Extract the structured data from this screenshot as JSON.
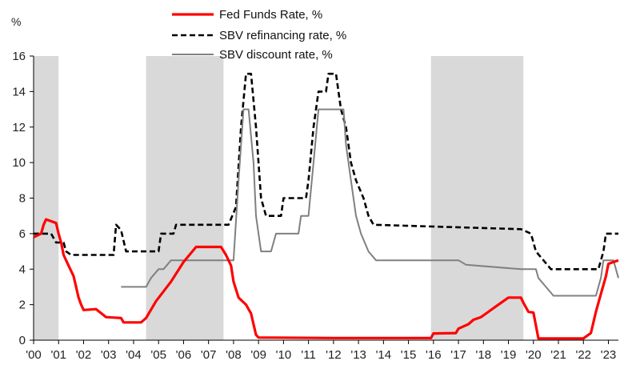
{
  "chart_data": {
    "type": "line",
    "ylabel": "%",
    "ylim": [
      0,
      16
    ],
    "y_ticks": [
      0,
      2,
      4,
      6,
      8,
      10,
      12,
      14,
      16
    ],
    "x_range": [
      2000.0,
      2023.4
    ],
    "x_ticks": [
      {
        "label": "'00",
        "x": 2000.0
      },
      {
        "label": "'01",
        "x": 2001.0
      },
      {
        "label": "'02",
        "x": 2002.0
      },
      {
        "label": "'03",
        "x": 2003.0
      },
      {
        "label": "'04",
        "x": 2004.0
      },
      {
        "label": "'05",
        "x": 2005.0
      },
      {
        "label": "'06",
        "x": 2006.0
      },
      {
        "label": "'07",
        "x": 2007.0
      },
      {
        "label": "'08",
        "x": 2008.0
      },
      {
        "label": "'09",
        "x": 2009.0
      },
      {
        "label": "'10",
        "x": 2010.0
      },
      {
        "label": "'11",
        "x": 2011.0
      },
      {
        "label": "'12",
        "x": 2012.0
      },
      {
        "label": "'13",
        "x": 2013.0
      },
      {
        "label": "'14",
        "x": 2014.0
      },
      {
        "label": "'15",
        "x": 2015.0
      },
      {
        "label": "'16",
        "x": 2016.0
      },
      {
        "label": "'17",
        "x": 2017.0
      },
      {
        "label": "'18",
        "x": 2018.0
      },
      {
        "label": "'19",
        "x": 2019.0
      },
      {
        "label": "'20",
        "x": 2020.0
      },
      {
        "label": "'21",
        "x": 2021.0
      },
      {
        "label": "'22",
        "x": 2022.0
      },
      {
        "label": "'23",
        "x": 2023.0
      }
    ],
    "shaded_periods": [
      [
        2000.0,
        2001.0
      ],
      [
        2004.5,
        2007.6
      ],
      [
        2015.9,
        2019.6
      ]
    ],
    "shade_color": "#d9d9d9",
    "legend_position": "top-center",
    "grid": false,
    "series": [
      {
        "name": "Fed Funds Rate, %",
        "color": "#ff0000",
        "style": "solid",
        "points": [
          [
            2000.0,
            5.8
          ],
          [
            2000.3,
            6.0
          ],
          [
            2000.4,
            6.5
          ],
          [
            2000.5,
            6.8
          ],
          [
            2000.9,
            6.6
          ],
          [
            2001.0,
            6.0
          ],
          [
            2001.1,
            5.5
          ],
          [
            2001.2,
            4.8
          ],
          [
            2001.4,
            4.2
          ],
          [
            2001.6,
            3.6
          ],
          [
            2001.7,
            3.0
          ],
          [
            2001.8,
            2.4
          ],
          [
            2001.9,
            2.0
          ],
          [
            2002.0,
            1.7
          ],
          [
            2002.5,
            1.75
          ],
          [
            2002.9,
            1.3
          ],
          [
            2003.5,
            1.25
          ],
          [
            2003.6,
            1.0
          ],
          [
            2004.0,
            1.0
          ],
          [
            2004.3,
            1.0
          ],
          [
            2004.5,
            1.25
          ],
          [
            2004.9,
            2.2
          ],
          [
            2005.5,
            3.3
          ],
          [
            2006.0,
            4.4
          ],
          [
            2006.5,
            5.25
          ],
          [
            2007.5,
            5.25
          ],
          [
            2007.7,
            4.8
          ],
          [
            2007.9,
            4.2
          ],
          [
            2008.0,
            3.3
          ],
          [
            2008.2,
            2.4
          ],
          [
            2008.5,
            2.0
          ],
          [
            2008.7,
            1.5
          ],
          [
            2008.9,
            0.3
          ],
          [
            2009.0,
            0.15
          ],
          [
            2012.0,
            0.12
          ],
          [
            2015.9,
            0.12
          ],
          [
            2016.0,
            0.38
          ],
          [
            2016.9,
            0.4
          ],
          [
            2017.0,
            0.65
          ],
          [
            2017.4,
            0.9
          ],
          [
            2017.6,
            1.15
          ],
          [
            2017.9,
            1.3
          ],
          [
            2018.2,
            1.6
          ],
          [
            2018.5,
            1.9
          ],
          [
            2018.8,
            2.2
          ],
          [
            2019.0,
            2.4
          ],
          [
            2019.5,
            2.4
          ],
          [
            2019.6,
            2.1
          ],
          [
            2019.8,
            1.6
          ],
          [
            2020.0,
            1.55
          ],
          [
            2020.2,
            0.1
          ],
          [
            2022.0,
            0.1
          ],
          [
            2022.3,
            0.4
          ],
          [
            2022.5,
            1.6
          ],
          [
            2022.7,
            2.6
          ],
          [
            2022.9,
            3.6
          ],
          [
            2023.0,
            4.3
          ],
          [
            2023.4,
            4.5
          ]
        ]
      },
      {
        "name": "SBV refinancing rate, %",
        "color": "#000000",
        "style": "dashed",
        "points": [
          [
            2000.0,
            6.0
          ],
          [
            2000.7,
            6.0
          ],
          [
            2000.9,
            5.5
          ],
          [
            2001.2,
            5.5
          ],
          [
            2001.3,
            5.0
          ],
          [
            2001.5,
            4.8
          ],
          [
            2003.2,
            4.8
          ],
          [
            2003.3,
            6.5
          ],
          [
            2003.5,
            6.2
          ],
          [
            2003.7,
            5.0
          ],
          [
            2005.0,
            5.0
          ],
          [
            2005.1,
            6.0
          ],
          [
            2005.6,
            6.0
          ],
          [
            2005.7,
            6.5
          ],
          [
            2007.8,
            6.5
          ],
          [
            2008.1,
            7.5
          ],
          [
            2008.3,
            12.0
          ],
          [
            2008.5,
            15.0
          ],
          [
            2008.7,
            15.0
          ],
          [
            2008.9,
            12.0
          ],
          [
            2009.1,
            8.0
          ],
          [
            2009.3,
            7.0
          ],
          [
            2009.9,
            7.0
          ],
          [
            2010.0,
            8.0
          ],
          [
            2010.9,
            8.0
          ],
          [
            2011.0,
            9.0
          ],
          [
            2011.2,
            12.0
          ],
          [
            2011.4,
            14.0
          ],
          [
            2011.7,
            14.0
          ],
          [
            2011.8,
            15.0
          ],
          [
            2012.1,
            15.0
          ],
          [
            2012.3,
            13.0
          ],
          [
            2012.5,
            12.0
          ],
          [
            2012.7,
            10.0
          ],
          [
            2012.9,
            9.0
          ],
          [
            2013.2,
            8.0
          ],
          [
            2013.4,
            7.0
          ],
          [
            2013.6,
            6.5
          ],
          [
            2019.5,
            6.25
          ],
          [
            2019.9,
            6.0
          ],
          [
            2020.1,
            5.0
          ],
          [
            2020.4,
            4.5
          ],
          [
            2020.7,
            4.0
          ],
          [
            2022.6,
            4.0
          ],
          [
            2022.8,
            5.0
          ],
          [
            2022.9,
            6.0
          ],
          [
            2023.4,
            6.0
          ]
        ]
      },
      {
        "name": "SBV discount rate, %",
        "color": "#808080",
        "style": "solid",
        "points": [
          [
            2003.5,
            3.0
          ],
          [
            2004.5,
            3.0
          ],
          [
            2004.7,
            3.5
          ],
          [
            2005.0,
            4.0
          ],
          [
            2005.2,
            4.0
          ],
          [
            2005.5,
            4.5
          ],
          [
            2008.0,
            4.5
          ],
          [
            2008.2,
            9.0
          ],
          [
            2008.4,
            13.0
          ],
          [
            2008.6,
            13.0
          ],
          [
            2008.8,
            10.0
          ],
          [
            2008.9,
            7.0
          ],
          [
            2009.1,
            5.0
          ],
          [
            2009.5,
            5.0
          ],
          [
            2009.7,
            6.0
          ],
          [
            2010.6,
            6.0
          ],
          [
            2010.7,
            7.0
          ],
          [
            2011.0,
            7.0
          ],
          [
            2011.2,
            10.0
          ],
          [
            2011.4,
            13.0
          ],
          [
            2012.4,
            13.0
          ],
          [
            2012.5,
            11.0
          ],
          [
            2012.7,
            9.0
          ],
          [
            2012.9,
            7.0
          ],
          [
            2013.1,
            6.0
          ],
          [
            2013.4,
            5.0
          ],
          [
            2013.7,
            4.5
          ],
          [
            2017.0,
            4.5
          ],
          [
            2017.3,
            4.25
          ],
          [
            2019.5,
            4.0
          ],
          [
            2020.1,
            4.0
          ],
          [
            2020.2,
            3.5
          ],
          [
            2020.5,
            3.0
          ],
          [
            2020.8,
            2.5
          ],
          [
            2022.5,
            2.5
          ],
          [
            2022.7,
            3.5
          ],
          [
            2022.8,
            4.5
          ],
          [
            2023.2,
            4.5
          ],
          [
            2023.4,
            3.5
          ]
        ]
      }
    ]
  }
}
